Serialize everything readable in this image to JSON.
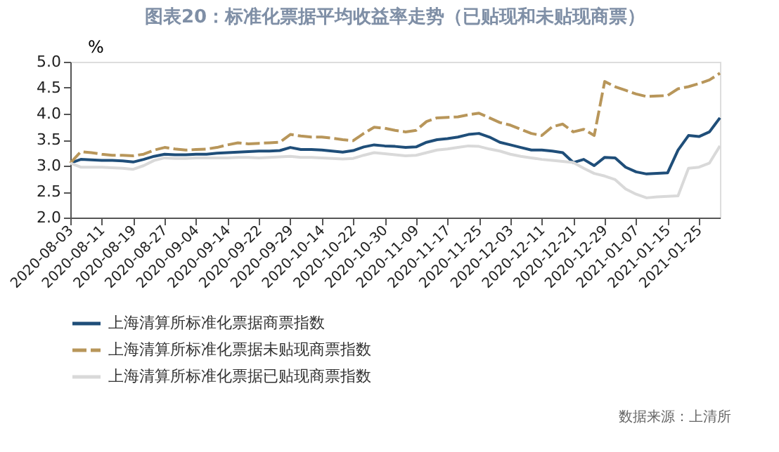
{
  "chart_data": {
    "type": "line",
    "title": "图表20：标准化票据平均收益率走势（已贴现和未贴现商票）",
    "ylabel": "%",
    "categories": [
      "2020-08-03",
      null,
      null,
      "2020-08-11",
      null,
      null,
      "2020-08-19",
      null,
      null,
      "2020-08-27",
      null,
      null,
      "2020-09-04",
      null,
      null,
      "2020-09-14",
      null,
      null,
      "2020-09-22",
      null,
      null,
      "2020-09-29",
      null,
      null,
      "2020-10-14",
      null,
      null,
      "2020-10-22",
      null,
      null,
      "2020-10-30",
      null,
      null,
      "2020-11-09",
      null,
      null,
      "2020-11-17",
      null,
      null,
      "2020-11-25",
      null,
      null,
      "2020-12-03",
      null,
      null,
      "2020-12-11",
      null,
      null,
      "2020-12-21",
      null,
      null,
      "2020-12-29",
      null,
      null,
      "2021-01-07",
      null,
      null,
      "2021-01-15",
      null,
      null,
      "2021-01-25",
      null,
      null
    ],
    "series": [
      {
        "name": "上海清算所标准化票据商票指数",
        "color": "#1f4e79",
        "line_style": "solid",
        "values": [
          3.05,
          3.12,
          3.11,
          3.1,
          3.1,
          3.09,
          3.07,
          3.12,
          3.18,
          3.22,
          3.21,
          3.21,
          3.22,
          3.22,
          3.24,
          3.25,
          3.26,
          3.27,
          3.28,
          3.28,
          3.29,
          3.35,
          3.31,
          3.31,
          3.3,
          3.28,
          3.26,
          3.29,
          3.36,
          3.4,
          3.38,
          3.37,
          3.35,
          3.36,
          3.45,
          3.5,
          3.52,
          3.55,
          3.6,
          3.62,
          3.55,
          3.45,
          3.4,
          3.35,
          3.3,
          3.3,
          3.28,
          3.25,
          3.06,
          3.12,
          3.0,
          3.16,
          3.15,
          2.97,
          2.88,
          2.84,
          2.85,
          2.86,
          3.3,
          3.58,
          3.56,
          3.65,
          3.92
        ]
      },
      {
        "name": "上海清算所标准化票据未贴现商票指数",
        "color": "#b8965a",
        "line_style": "dashed",
        "values": [
          3.05,
          3.27,
          3.25,
          3.22,
          3.2,
          3.2,
          3.19,
          3.22,
          3.3,
          3.35,
          3.32,
          3.3,
          3.31,
          3.32,
          3.35,
          3.4,
          3.44,
          3.42,
          3.43,
          3.44,
          3.45,
          3.6,
          3.57,
          3.55,
          3.55,
          3.53,
          3.5,
          3.48,
          3.62,
          3.74,
          3.72,
          3.68,
          3.65,
          3.68,
          3.85,
          3.92,
          3.93,
          3.94,
          3.98,
          4.01,
          3.92,
          3.83,
          3.78,
          3.7,
          3.62,
          3.58,
          3.75,
          3.8,
          3.65,
          3.7,
          3.58,
          4.62,
          4.52,
          4.45,
          4.38,
          4.33,
          4.34,
          4.35,
          4.48,
          4.52,
          4.58,
          4.65,
          4.78
        ]
      },
      {
        "name": "上海清算所标准化票据已贴现商票指数",
        "color": "#d9d9d9",
        "line_style": "solid",
        "values": [
          3.05,
          2.97,
          2.97,
          2.97,
          2.96,
          2.95,
          2.93,
          3.0,
          3.1,
          3.15,
          3.14,
          3.14,
          3.15,
          3.15,
          3.15,
          3.15,
          3.16,
          3.16,
          3.15,
          3.16,
          3.17,
          3.18,
          3.16,
          3.16,
          3.15,
          3.14,
          3.13,
          3.14,
          3.2,
          3.25,
          3.23,
          3.21,
          3.19,
          3.2,
          3.25,
          3.3,
          3.32,
          3.35,
          3.38,
          3.37,
          3.32,
          3.28,
          3.22,
          3.18,
          3.15,
          3.12,
          3.1,
          3.08,
          3.06,
          2.95,
          2.85,
          2.8,
          2.73,
          2.55,
          2.45,
          2.38,
          2.4,
          2.41,
          2.42,
          2.95,
          2.97,
          3.05,
          3.38
        ]
      }
    ],
    "ylim": [
      2.0,
      5.0
    ],
    "yticks": [
      {
        "value": 2.0,
        "label": "2.0"
      },
      {
        "value": 2.5,
        "label": "2.5"
      },
      {
        "value": 3.0,
        "label": "3.0"
      },
      {
        "value": 3.5,
        "label": "3.5"
      },
      {
        "value": 4.0,
        "label": "4.0"
      },
      {
        "value": 4.5,
        "label": "4.5"
      },
      {
        "value": 5.0,
        "label": "5.0"
      }
    ],
    "grid": false,
    "legend": "bottom",
    "annotations": [
      "数据来源：上清所"
    ]
  }
}
